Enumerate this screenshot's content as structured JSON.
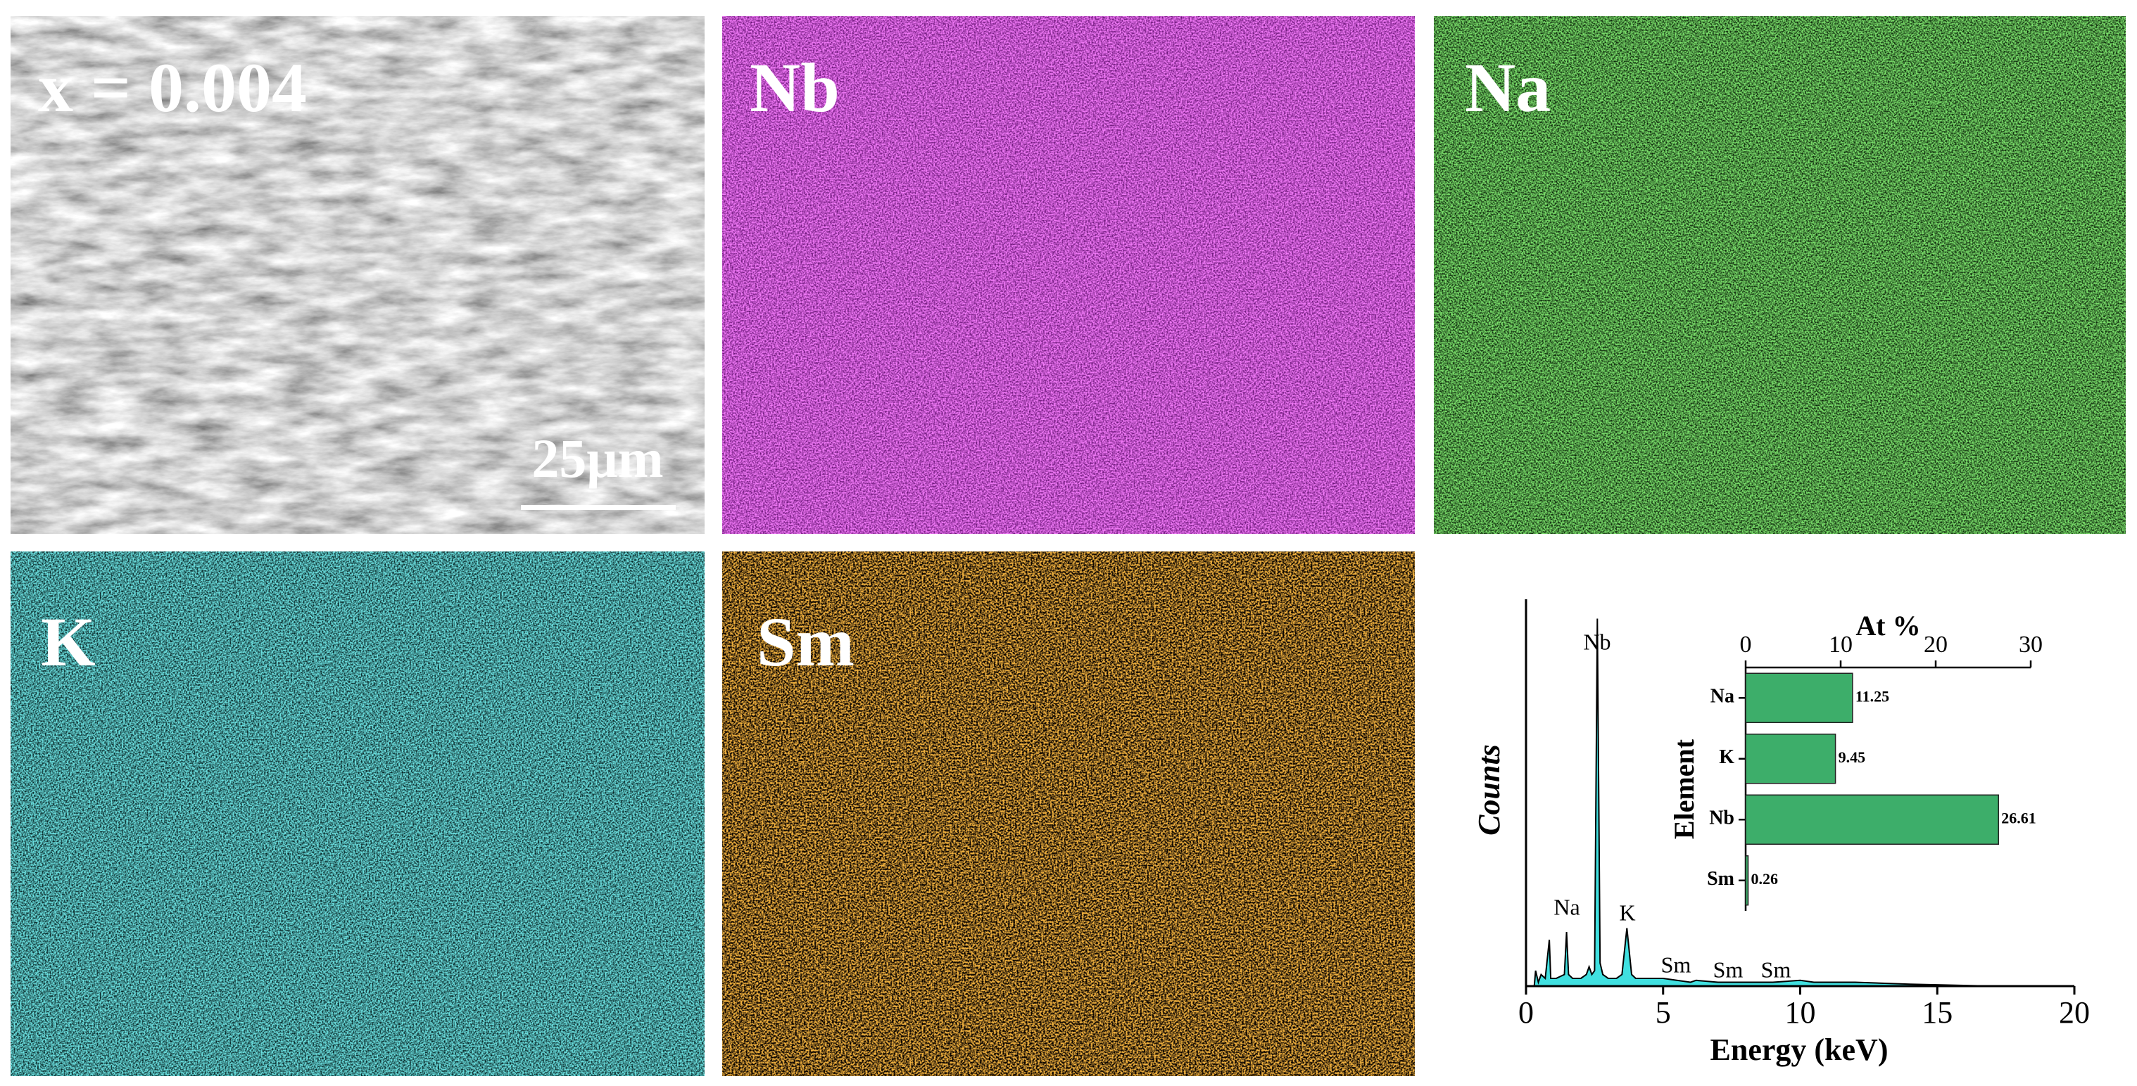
{
  "panels": [
    {
      "label": "x = 0.004"
    },
    {
      "label": "Nb"
    },
    {
      "label": "Na"
    },
    {
      "label": "K"
    },
    {
      "label": "Sm"
    }
  ],
  "scale_bar": "25μm",
  "chart_data": [
    {
      "type": "line",
      "x_label": "Energy (keV)",
      "y_label": "Counts",
      "color": "#40e0e0",
      "x": [
        0,
        0.3,
        0.35,
        0.45,
        0.55,
        0.7,
        0.85,
        0.9,
        0.95,
        1.1,
        1.4,
        1.48,
        1.55,
        1.7,
        2.0,
        2.2,
        2.3,
        2.4,
        2.5,
        2.6,
        2.7,
        2.8,
        3.0,
        3.3,
        3.5,
        3.68,
        3.85,
        4.0,
        5.0,
        6.0,
        6.2,
        7.0,
        8.0,
        9.0,
        10.0,
        10.5,
        11.5,
        12.0,
        14,
        17,
        20
      ],
      "values": [
        0,
        0,
        4,
        1,
        3,
        2,
        12,
        2,
        2,
        2,
        3,
        14,
        3,
        2,
        2,
        3,
        5,
        3,
        4,
        95,
        6,
        3,
        2,
        2,
        3,
        15,
        3,
        2,
        2,
        1,
        1.5,
        1,
        1,
        1,
        1.5,
        1,
        1,
        1,
        0.5,
        0,
        0
      ],
      "xlim": [
        0,
        20
      ],
      "xticks": [
        0,
        5,
        10,
        15,
        20
      ],
      "ylim": [
        0,
        100
      ],
      "annotations": [
        "Nb",
        "Na",
        "K",
        "Sm",
        "Sm",
        "Sm"
      ]
    },
    {
      "type": "barh",
      "title": "At %",
      "y_label": "Element",
      "color": "#3dae6a",
      "categories": [
        "Na",
        "K",
        "Nb",
        "Sm"
      ],
      "values": [
        11.25,
        9.45,
        26.61,
        0.26
      ],
      "xlim": [
        0,
        30
      ],
      "xticks": [
        0,
        10,
        20,
        30
      ]
    }
  ]
}
